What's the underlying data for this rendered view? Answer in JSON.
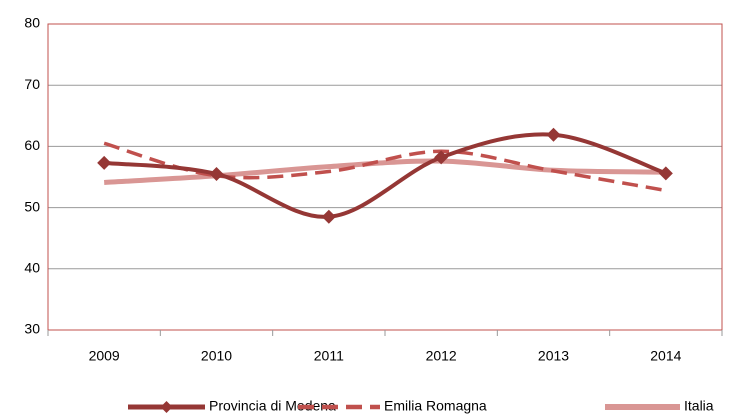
{
  "chart_data": {
    "type": "line",
    "categories": [
      "2009",
      "2010",
      "2011",
      "2012",
      "2013",
      "2014"
    ],
    "series": [
      {
        "name": "Provincia di Modena",
        "color": "#953735",
        "style": "solid",
        "marker": "diamond",
        "values": [
          57.3,
          55.5,
          48.5,
          58.2,
          61.9,
          55.6
        ]
      },
      {
        "name": "Emilia Romagna",
        "color": "#c0504d",
        "style": "dashed",
        "values": [
          60.5,
          55.2,
          55.9,
          59.2,
          56.0,
          52.8
        ]
      },
      {
        "name": "Italia",
        "color": "#d99694",
        "style": "solid",
        "values": [
          54.1,
          55.2,
          56.7,
          57.6,
          56.1,
          55.8
        ]
      }
    ],
    "ylim": [
      30,
      80
    ],
    "yticks": [
      30,
      40,
      50,
      60,
      70,
      80
    ],
    "grid": true,
    "smooth": true,
    "legend": "bottom"
  }
}
